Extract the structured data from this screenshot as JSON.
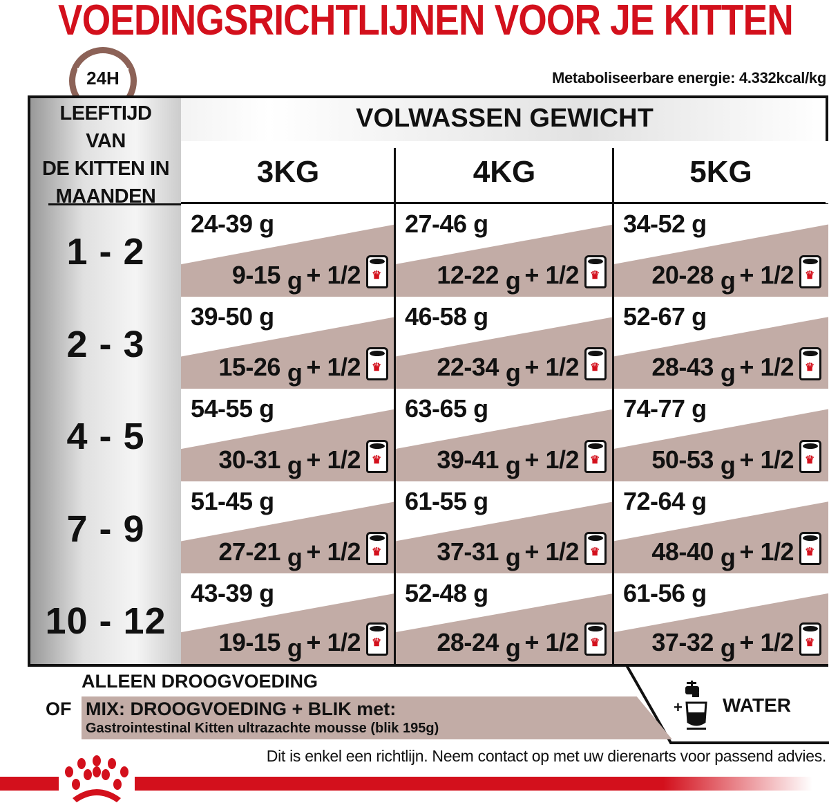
{
  "title": "VOEDINGSRICHTLIJNEN VOOR JE KITTEN",
  "energy": "Metaboliseerbare energie: 4.332kcal/kg",
  "clock_label": "24H",
  "age_header": [
    "LEEFTIJD",
    "VAN",
    "DE KITTEN IN",
    "MAANDEN"
  ],
  "weight_header": "VOLWASSEN GEWICHT",
  "weights": [
    "3KG",
    "4KG",
    "5KG"
  ],
  "unit": "g",
  "can_suffix": "+ 1/2",
  "rows": [
    {
      "age": "1 - 2",
      "cells": [
        {
          "dry": "24-39 g",
          "mix": "9-15"
        },
        {
          "dry": "27-46 g",
          "mix": "12-22"
        },
        {
          "dry": "34-52 g",
          "mix": "20-28"
        }
      ]
    },
    {
      "age": "2 - 3",
      "cells": [
        {
          "dry": "39-50 g",
          "mix": "15-26"
        },
        {
          "dry": "46-58 g",
          "mix": "22-34"
        },
        {
          "dry": "52-67 g",
          "mix": "28-43"
        }
      ]
    },
    {
      "age": "4 - 5",
      "cells": [
        {
          "dry": "54-55 g",
          "mix": "30-31"
        },
        {
          "dry": "63-65 g",
          "mix": "39-41"
        },
        {
          "dry": "74-77 g",
          "mix": "50-53"
        }
      ]
    },
    {
      "age": "7 - 9",
      "cells": [
        {
          "dry": "51-45 g",
          "mix": "27-21"
        },
        {
          "dry": "61-55 g",
          "mix": "37-31"
        },
        {
          "dry": "72-64 g",
          "mix": "48-40"
        }
      ]
    },
    {
      "age": "10 - 12",
      "cells": [
        {
          "dry": "43-39 g",
          "mix": "19-15"
        },
        {
          "dry": "52-48 g",
          "mix": "28-24"
        },
        {
          "dry": "61-56 g",
          "mix": "37-32"
        }
      ]
    }
  ],
  "legend": {
    "dry_only": "ALLEEN DROOGVOEDING",
    "or": "OF",
    "mix": "MIX: DROOGVOEDING + BLIK met:",
    "mix_product": "Gastrointestinal Kitten ultrazachte mousse (blik 195g)",
    "plus": "+",
    "water": "WATER"
  },
  "disclaimer": "Dit is enkel een richtlijn. Neem contact op met uw dierenarts voor passend advies.",
  "colors": {
    "brand_red": "#d3101c",
    "wet_band": "#c2aca6",
    "clock": "#8c6257"
  }
}
